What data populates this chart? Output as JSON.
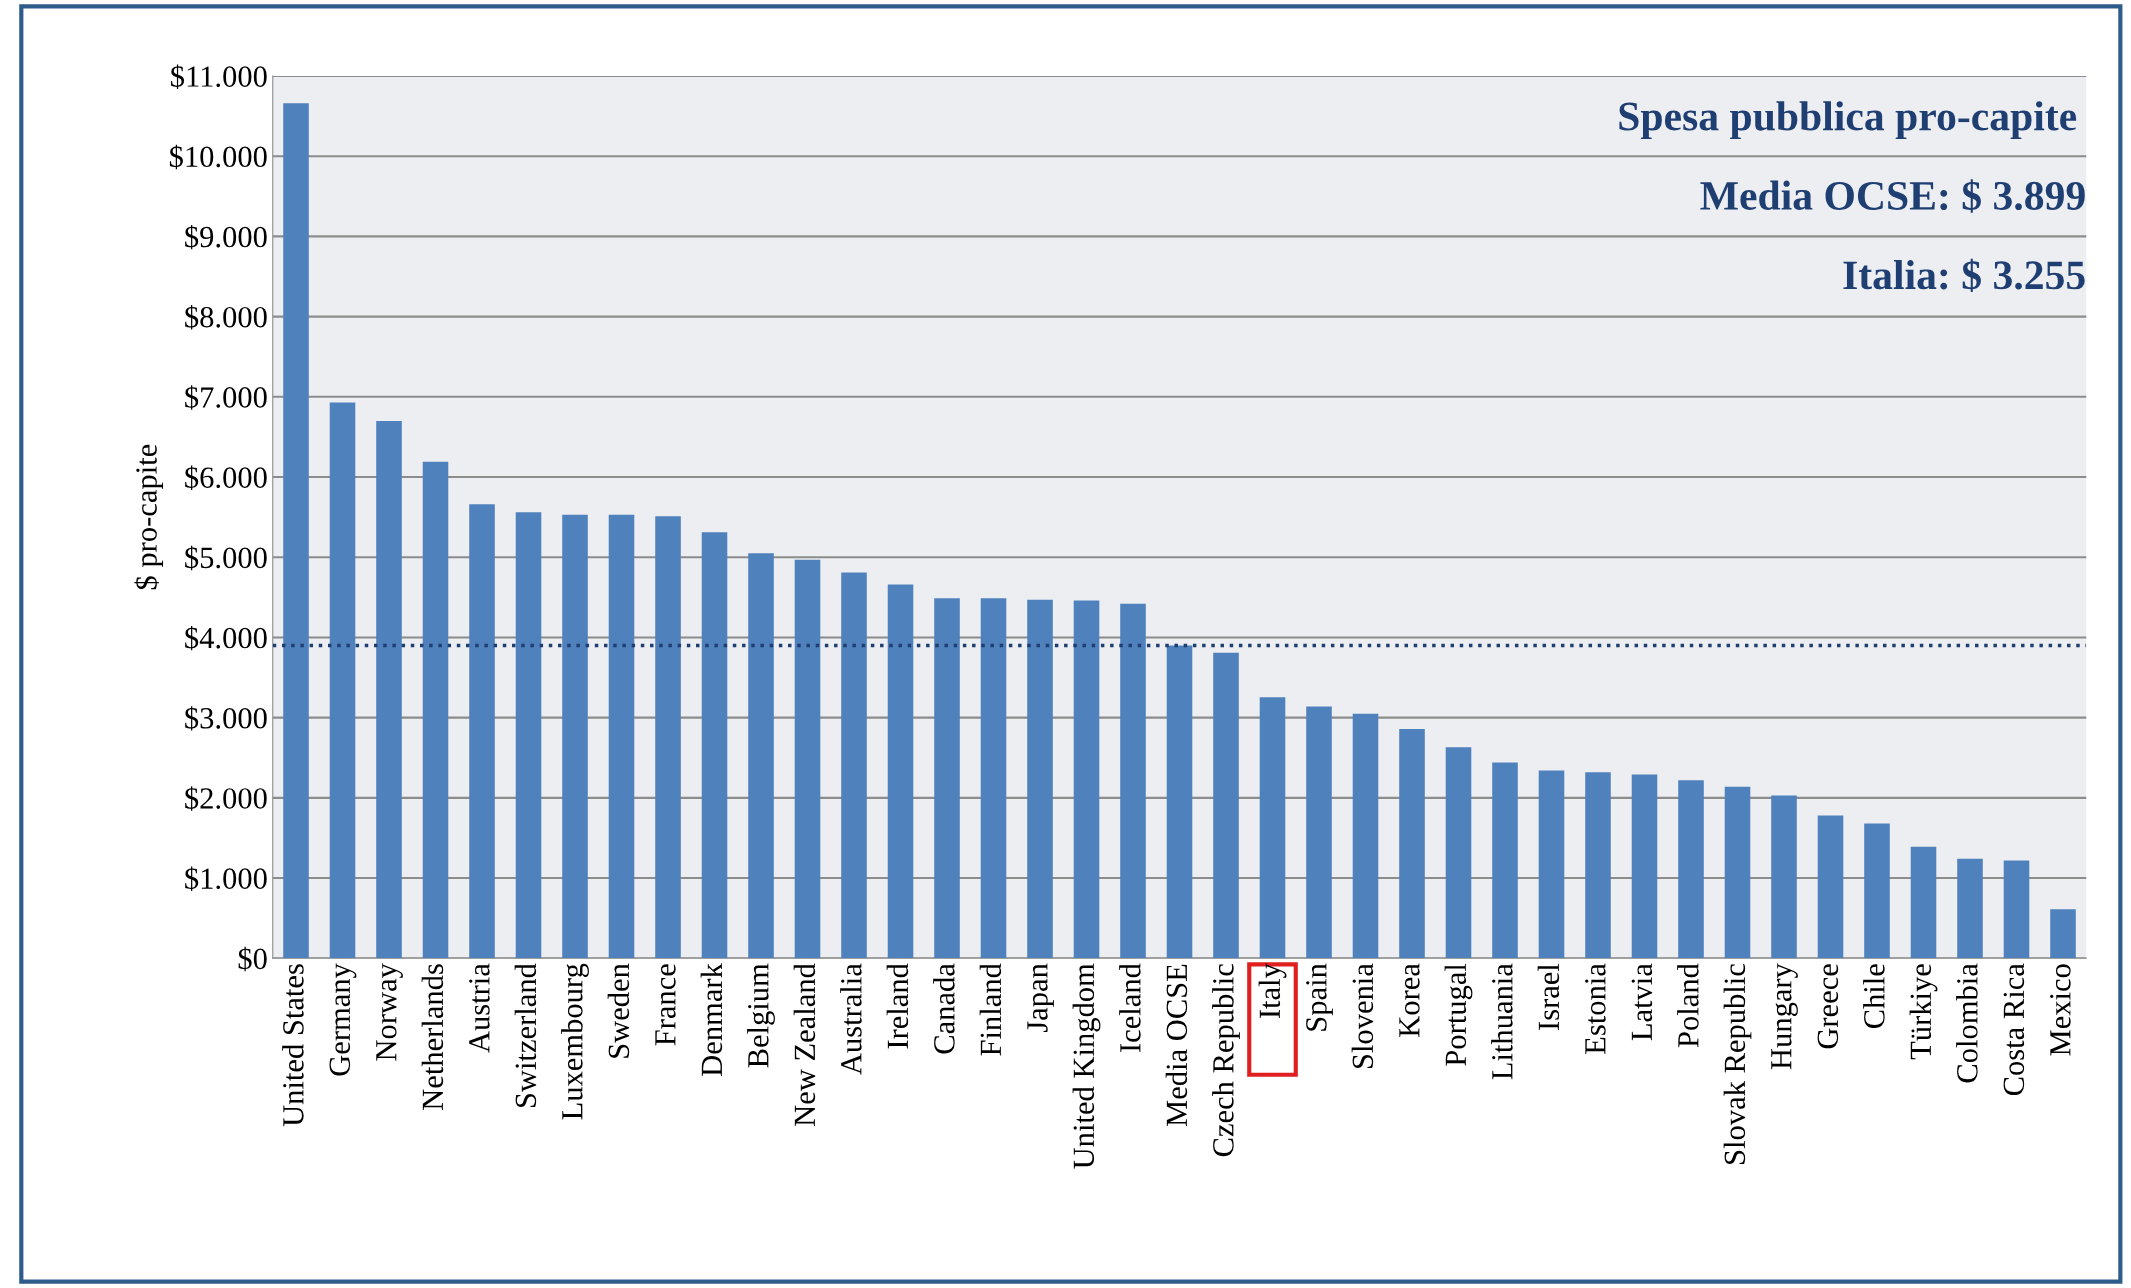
{
  "chart_data": {
    "type": "bar",
    "title": "Spesa pubblica pro-capite",
    "ylabel": "$ pro-capite",
    "annotations": [
      "Media OCSE: $ 3.899",
      "Italia: $ 3.255"
    ],
    "categories": [
      "United States",
      "Germany",
      "Norway",
      "Netherlands",
      "Austria",
      "Switzerland",
      "Luxembourg",
      "Sweden",
      "France",
      "Denmark",
      "Belgium",
      "New Zealand",
      "Australia",
      "Ireland",
      "Canada",
      "Finland",
      "Japan",
      "United Kingdom",
      "Iceland",
      "Media OCSE",
      "Czech Republic",
      "Italy",
      "Spain",
      "Slovenia",
      "Korea",
      "Portugal",
      "Lithuania",
      "Israel",
      "Estonia",
      "Latvia",
      "Poland",
      "Slovak Republic",
      "Hungary",
      "Greece",
      "Chile",
      "Türkiye",
      "Colombia",
      "Costa Rica",
      "Mexico"
    ],
    "values": [
      10660,
      6930,
      6700,
      6190,
      5660,
      5560,
      5530,
      5530,
      5510,
      5310,
      5050,
      4970,
      4810,
      4660,
      4490,
      4490,
      4470,
      4460,
      4420,
      3899,
      3810,
      3255,
      3140,
      3050,
      2860,
      2630,
      2440,
      2340,
      2320,
      2290,
      2220,
      2140,
      2030,
      1780,
      1680,
      1390,
      1240,
      1220,
      610
    ],
    "color": "#4f81bd",
    "ylim": [
      0,
      11000
    ],
    "yticks": [
      {
        "value": 0,
        "label": "$0"
      },
      {
        "value": 1000,
        "label": "$1.000"
      },
      {
        "value": 2000,
        "label": "$2.000"
      },
      {
        "value": 3000,
        "label": "$3.000"
      },
      {
        "value": 4000,
        "label": "$4.000"
      },
      {
        "value": 5000,
        "label": "$5.000"
      },
      {
        "value": 6000,
        "label": "$6.000"
      },
      {
        "value": 7000,
        "label": "$7.000"
      },
      {
        "value": 8000,
        "label": "$8.000"
      },
      {
        "value": 9000,
        "label": "$9.000"
      },
      {
        "value": 10000,
        "label": "$10.000"
      },
      {
        "value": 11000,
        "label": "$11.000"
      }
    ],
    "ref_lines": [
      {
        "axis": "y",
        "value": 3899,
        "color": "#1f3f73",
        "line_style": "dotted"
      }
    ],
    "grid": "y",
    "legend": false
  }
}
